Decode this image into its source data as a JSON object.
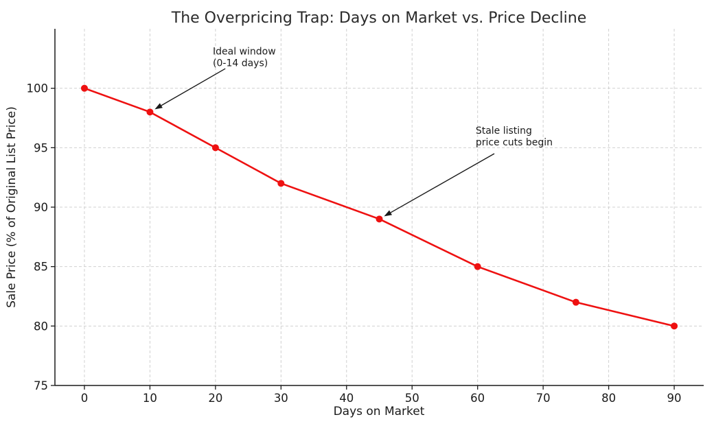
{
  "chart_data": {
    "type": "line",
    "title": "The Overpricing Trap: Days on Market vs. Price Decline",
    "xlabel": "Days on Market",
    "ylabel": "Sale Price (% of Original List Price)",
    "x": [
      0,
      10,
      20,
      30,
      45,
      60,
      75,
      90
    ],
    "y": [
      100,
      98,
      95,
      92,
      89,
      85,
      82,
      80
    ],
    "xticks": [
      0,
      10,
      20,
      30,
      40,
      50,
      60,
      70,
      80,
      90
    ],
    "yticks": [
      75,
      80,
      85,
      90,
      95,
      100
    ],
    "xlim": [
      -4.5,
      94.5
    ],
    "ylim": [
      75,
      105
    ],
    "grid": true,
    "legend": "none",
    "marker": "circle",
    "line_color": "#ee1111",
    "grid_color": "#d0d0d0",
    "axis_color": "#1a1a1a",
    "annotation_color": "#1a1a1a",
    "annotations": [
      {
        "text": "Ideal window\n(0-14 days)",
        "point": [
          10,
          98
        ],
        "text_xy": [
          19.6,
          103.6
        ],
        "arrow_start": [
          21.5,
          101.65
        ]
      },
      {
        "text": "Stale listing\nprice cuts begin",
        "point": [
          45,
          89
        ],
        "text_xy": [
          59.7,
          96.92
        ],
        "arrow_start": [
          62.55,
          94.5
        ]
      }
    ]
  }
}
